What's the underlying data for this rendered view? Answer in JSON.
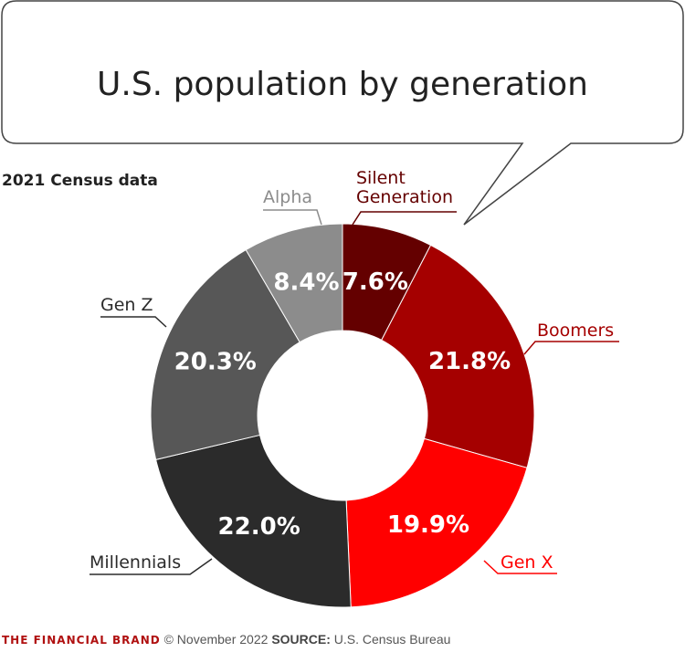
{
  "chart_data": {
    "type": "pie",
    "title": "U.S. population by generation",
    "subtitle": "2021 Census data",
    "unit": "%",
    "categories": [
      "Silent Generation",
      "Boomers",
      "Gen X",
      "Millennials",
      "Gen Z",
      "Alpha"
    ],
    "values": [
      7.6,
      21.8,
      19.9,
      22.0,
      20.3,
      8.4
    ],
    "data_labels": [
      "7.6%",
      "21.8%",
      "19.9%",
      "22.0%",
      "20.3%",
      "8.4%"
    ],
    "colors": [
      "#640000",
      "#a50000",
      "#ff0000",
      "#2b2b2b",
      "#575757",
      "#8c8c8c"
    ],
    "label_colors": [
      "#640000",
      "#a50000",
      "#ff0000",
      "#2b2b2b",
      "#2b2b2b",
      "#8c8c8c"
    ],
    "donut": true,
    "start": "top",
    "direction": "clockwise"
  },
  "footer": {
    "brand": "THE FINANCIAL BRAND",
    "date": "© November 2022",
    "source_label": "SOURCE:",
    "source": "U.S. Census Bureau"
  }
}
